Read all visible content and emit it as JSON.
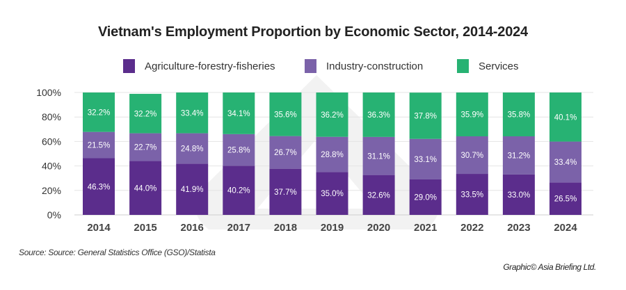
{
  "chart_data": {
    "type": "bar",
    "stacked": true,
    "title": "Vietnam's Employment Proportion by Economic Sector, 2014-2024",
    "xlabel": "",
    "ylabel": "",
    "ylim": [
      0,
      100
    ],
    "yticks": [
      "0%",
      "20%",
      "40%",
      "60%",
      "80%",
      "100%"
    ],
    "ytick_values": [
      0,
      20,
      40,
      60,
      80,
      100
    ],
    "grid": true,
    "legend_position": "top-center",
    "categories": [
      "2014",
      "2015",
      "2016",
      "2017",
      "2018",
      "2019",
      "2020",
      "2021",
      "2022",
      "2023",
      "2024"
    ],
    "series": [
      {
        "name": "Agriculture-forestry-fisheries",
        "color": "#5b2d8c",
        "values": [
          46.3,
          44.0,
          41.9,
          40.2,
          37.7,
          35.0,
          32.6,
          29.0,
          33.5,
          33.0,
          26.5
        ],
        "labels": [
          "46.3%",
          "44.0%",
          "41.9%",
          "40.2%",
          "37.7%",
          "35.0%",
          "32.6%",
          "29.0%",
          "33.5%",
          "33.0%",
          "26.5%"
        ]
      },
      {
        "name": "Industry-construction",
        "color": "#7b62a9",
        "values": [
          21.5,
          22.7,
          24.8,
          25.8,
          26.7,
          28.8,
          31.1,
          33.1,
          30.7,
          31.2,
          33.4
        ],
        "labels": [
          "21.5%",
          "22.7%",
          "24.8%",
          "25.8%",
          "26.7%",
          "28.8%",
          "31.1%",
          "33.1%",
          "30.7%",
          "31.2%",
          "33.4%"
        ]
      },
      {
        "name": "Services",
        "color": "#27b273",
        "values": [
          32.2,
          32.2,
          33.4,
          34.1,
          35.6,
          36.2,
          36.3,
          37.8,
          35.9,
          35.8,
          40.1
        ],
        "labels": [
          "32.2%",
          "32.2%",
          "33.4%",
          "34.1%",
          "35.6%",
          "36.2%",
          "36.3%",
          "37.8%",
          "35.9%",
          "35.8%",
          "40.1%"
        ]
      }
    ]
  },
  "legend": [
    {
      "label": "Agriculture-forestry-fisheries",
      "color": "#5b2d8c"
    },
    {
      "label": "Industry-construction",
      "color": "#7b62a9"
    },
    {
      "label": "Services",
      "color": "#27b273"
    }
  ],
  "footer": {
    "source": "Source: Source: General Statistics Office (GSO)/Statista",
    "credit": "Graphic© Asia Briefing Ltd."
  },
  "colors": {
    "gridline": "#e4e4e4",
    "axis_text": "#333333",
    "year_text": "#444444",
    "watermark": "#f2f2f2"
  }
}
